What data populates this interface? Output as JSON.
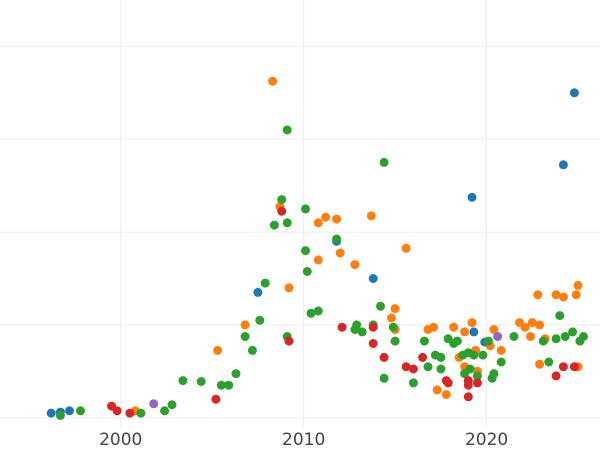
{
  "chart_data": {
    "type": "scatter",
    "title": "",
    "xlabel": "",
    "ylabel": "",
    "xlim": [
      1993.4,
      2026.2
    ],
    "ylim": [
      -2,
      90
    ],
    "xticks": [
      2000,
      2010,
      2020
    ],
    "xtick_labels": [
      "2000",
      "2010",
      "2020"
    ],
    "yticks": [
      0,
      20,
      40,
      60,
      80
    ],
    "ytick_labels": [],
    "grid": true,
    "legend": "none",
    "colors": {
      "blue": "#1f77b4",
      "orange": "#ff7f0e",
      "green": "#2ca02c",
      "red": "#d62728",
      "purple": "#9467bd"
    },
    "series": [
      {
        "color": "#1f77b4",
        "points": [
          [
            1996.2,
            1.0
          ],
          [
            1996.7,
            1.2
          ],
          [
            1997.2,
            1.5
          ],
          [
            2007.5,
            27.0
          ],
          [
            2011.8,
            38.0
          ],
          [
            2013.8,
            30.0
          ],
          [
            2019.2,
            47.5
          ],
          [
            2019.3,
            18.5
          ],
          [
            2019.9,
            16.3
          ],
          [
            2024.2,
            54.5
          ],
          [
            2024.8,
            70.0
          ]
        ]
      },
      {
        "color": "#ff7f0e",
        "points": [
          [
            2000.8,
            1.5
          ],
          [
            2005.3,
            14.5
          ],
          [
            2006.8,
            20.0
          ],
          [
            2008.3,
            72.5
          ],
          [
            2008.7,
            45.5
          ],
          [
            2009.2,
            28.0
          ],
          [
            2010.8,
            42.0
          ],
          [
            2010.8,
            34.0
          ],
          [
            2011.2,
            43.2
          ],
          [
            2011.8,
            42.8
          ],
          [
            2012.0,
            35.5
          ],
          [
            2012.8,
            33.0
          ],
          [
            2013.7,
            43.5
          ],
          [
            2014.8,
            21.5
          ],
          [
            2015.0,
            23.5
          ],
          [
            2015.0,
            19.0
          ],
          [
            2015.6,
            36.5
          ],
          [
            2016.8,
            19.0
          ],
          [
            2017.1,
            19.5
          ],
          [
            2017.3,
            6.0
          ],
          [
            2017.8,
            5.0
          ],
          [
            2018.2,
            19.5
          ],
          [
            2018.5,
            13.0
          ],
          [
            2018.8,
            18.5
          ],
          [
            2018.8,
            11.0
          ],
          [
            2019.2,
            20.5
          ],
          [
            2019.4,
            14.5
          ],
          [
            2019.5,
            10.0
          ],
          [
            2020.2,
            15.5
          ],
          [
            2020.4,
            19.0
          ],
          [
            2020.8,
            14.5
          ],
          [
            2021.8,
            20.5
          ],
          [
            2022.1,
            19.5
          ],
          [
            2022.4,
            17.5
          ],
          [
            2022.5,
            20.5
          ],
          [
            2022.8,
            26.5
          ],
          [
            2022.9,
            11.5
          ],
          [
            2022.9,
            20.0
          ],
          [
            2023.2,
            17.0
          ],
          [
            2023.8,
            26.5
          ],
          [
            2024.2,
            26.0
          ],
          [
            2024.9,
            26.5
          ],
          [
            2025.0,
            28.5
          ],
          [
            2025.0,
            11.0
          ]
        ]
      },
      {
        "color": "#2ca02c",
        "points": [
          [
            1996.7,
            0.5
          ],
          [
            1997.8,
            1.5
          ],
          [
            2001.1,
            1.0
          ],
          [
            2002.4,
            1.5
          ],
          [
            2002.8,
            2.8
          ],
          [
            2003.4,
            8.0
          ],
          [
            2004.4,
            7.8
          ],
          [
            2005.5,
            7.0
          ],
          [
            2005.9,
            7.0
          ],
          [
            2006.3,
            9.5
          ],
          [
            2006.8,
            17.5
          ],
          [
            2007.2,
            14.5
          ],
          [
            2007.6,
            21.0
          ],
          [
            2007.9,
            29.0
          ],
          [
            2008.4,
            41.5
          ],
          [
            2008.8,
            47.0
          ],
          [
            2009.1,
            62.0
          ],
          [
            2009.1,
            17.5
          ],
          [
            2009.1,
            42.0
          ],
          [
            2010.1,
            45.0
          ],
          [
            2010.1,
            36.0
          ],
          [
            2010.2,
            31.5
          ],
          [
            2010.4,
            22.5
          ],
          [
            2010.8,
            23.0
          ],
          [
            2011.8,
            38.5
          ],
          [
            2012.8,
            19.0
          ],
          [
            2012.9,
            20.0
          ],
          [
            2013.2,
            18.5
          ],
          [
            2013.8,
            20.0
          ],
          [
            2014.2,
            24.0
          ],
          [
            2014.4,
            55.0
          ],
          [
            2014.4,
            8.5
          ],
          [
            2014.9,
            19.5
          ],
          [
            2015.0,
            16.5
          ],
          [
            2016.0,
            7.5
          ],
          [
            2016.6,
            16.5
          ],
          [
            2016.8,
            11.0
          ],
          [
            2017.2,
            13.5
          ],
          [
            2017.5,
            10.5
          ],
          [
            2017.5,
            13.0
          ],
          [
            2017.9,
            17.0
          ],
          [
            2018.2,
            16.0
          ],
          [
            2018.4,
            16.5
          ],
          [
            2018.7,
            13.5
          ],
          [
            2018.8,
            9.5
          ],
          [
            2019.0,
            14.0
          ],
          [
            2019.1,
            10.5
          ],
          [
            2019.3,
            13.5
          ],
          [
            2019.5,
            9.0
          ],
          [
            2019.8,
            13.5
          ],
          [
            2020.1,
            16.5
          ],
          [
            2020.3,
            8.5
          ],
          [
            2020.4,
            9.5
          ],
          [
            2020.8,
            12.0
          ],
          [
            2021.5,
            17.5
          ],
          [
            2023.1,
            16.5
          ],
          [
            2023.4,
            12.0
          ],
          [
            2023.8,
            17.0
          ],
          [
            2024.0,
            22.0
          ],
          [
            2024.3,
            17.5
          ],
          [
            2024.7,
            18.5
          ],
          [
            2025.1,
            16.5
          ],
          [
            2025.3,
            17.5
          ]
        ]
      },
      {
        "color": "#d62728",
        "points": [
          [
            1999.5,
            2.5
          ],
          [
            1999.8,
            1.5
          ],
          [
            2000.5,
            1.0
          ],
          [
            2005.2,
            4.0
          ],
          [
            2008.8,
            44.5
          ],
          [
            2009.2,
            16.5
          ],
          [
            2012.1,
            19.5
          ],
          [
            2013.8,
            19.5
          ],
          [
            2013.8,
            16.0
          ],
          [
            2014.4,
            13.0
          ],
          [
            2015.6,
            11.0
          ],
          [
            2016.0,
            10.5
          ],
          [
            2016.5,
            13.0
          ],
          [
            2017.8,
            8.0
          ],
          [
            2017.9,
            7.5
          ],
          [
            2019.0,
            7.0
          ],
          [
            2019.0,
            8.0
          ],
          [
            2019.0,
            4.5
          ],
          [
            2019.5,
            7.5
          ],
          [
            2023.8,
            9.0
          ],
          [
            2024.2,
            11.0
          ],
          [
            2024.8,
            11.0
          ]
        ]
      },
      {
        "color": "#9467bd",
        "points": [
          [
            2001.8,
            3.0
          ],
          [
            2020.6,
            17.5
          ]
        ]
      }
    ]
  }
}
